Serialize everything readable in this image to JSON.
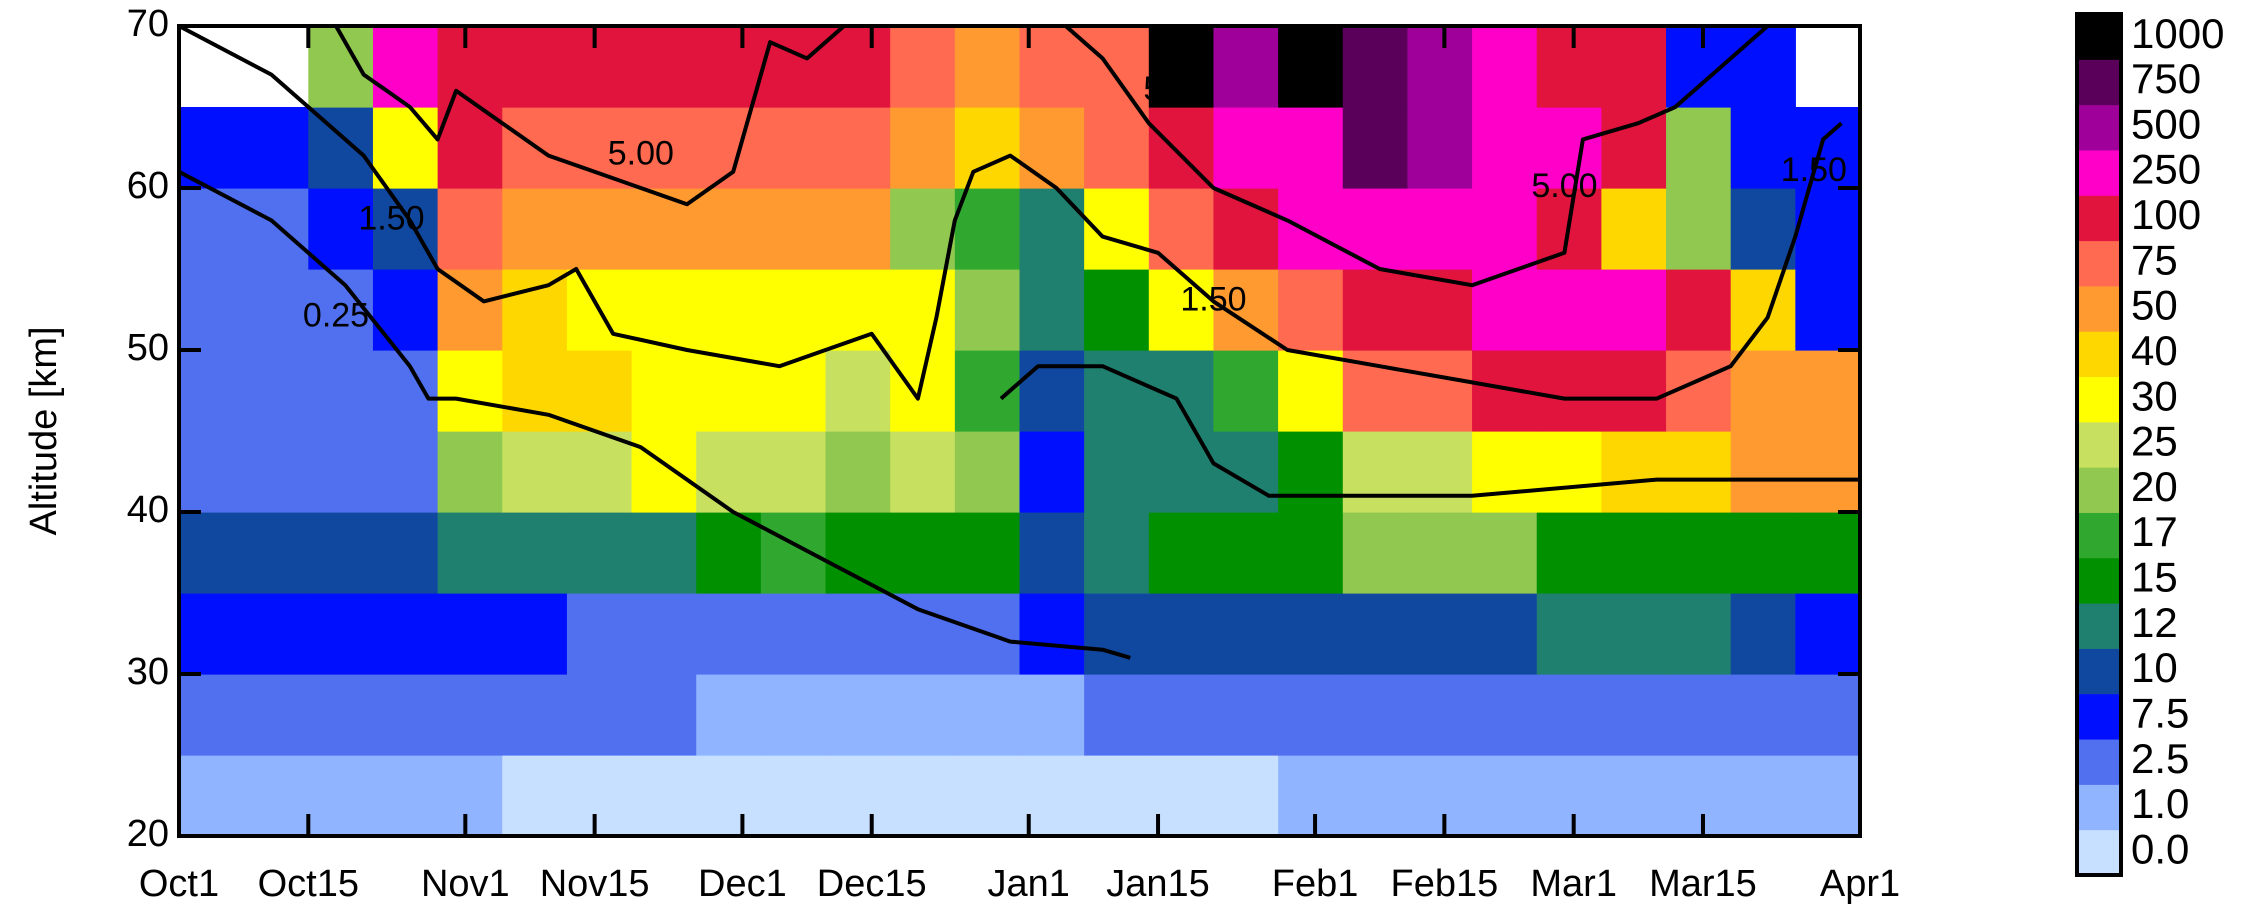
{
  "chart_data": {
    "type": "heatmap",
    "ylabel": "Altitude [km]",
    "xlim": [
      0,
      182
    ],
    "xticks": [
      {
        "value": 0,
        "label": "Oct1"
      },
      {
        "value": 14,
        "label": "Oct15"
      },
      {
        "value": 31,
        "label": "Nov1"
      },
      {
        "value": 45,
        "label": "Nov15"
      },
      {
        "value": 61,
        "label": "Dec1"
      },
      {
        "value": 75,
        "label": "Dec15"
      },
      {
        "value": 92,
        "label": "Jan1"
      },
      {
        "value": 106,
        "label": "Jan15"
      },
      {
        "value": 123,
        "label": "Feb1"
      },
      {
        "value": 137,
        "label": "Feb15"
      },
      {
        "value": 151,
        "label": "Mar1"
      },
      {
        "value": 165,
        "label": "Mar15"
      },
      {
        "value": 182,
        "label": "Apr1"
      }
    ],
    "ylim": [
      20,
      70
    ],
    "yticks": [
      20,
      30,
      40,
      50,
      60,
      70
    ],
    "x_bins": [
      0,
      7,
      14,
      21,
      28,
      35,
      42,
      49,
      56,
      63,
      70,
      77,
      84,
      91,
      98,
      105,
      112,
      119,
      126,
      133,
      140,
      147,
      154,
      161,
      168,
      175,
      182
    ],
    "y_bins": [
      20,
      25,
      30,
      35,
      40,
      45,
      50,
      55,
      60,
      65,
      70
    ],
    "values": [
      [
        1,
        1,
        1,
        1,
        1,
        0,
        0,
        0,
        0,
        0,
        0,
        0,
        0,
        0,
        0,
        0,
        0,
        1,
        1,
        1,
        1,
        1,
        1,
        1,
        1,
        1
      ],
      [
        2.5,
        2.5,
        2.5,
        2.5,
        2.5,
        2.5,
        2.5,
        2.5,
        1,
        1,
        1,
        1,
        1,
        1,
        2.5,
        2.5,
        2.5,
        2.5,
        2.5,
        2.5,
        2.5,
        2.5,
        2.5,
        2.5,
        2.5,
        2.5
      ],
      [
        7.5,
        7.5,
        7.5,
        7.5,
        7.5,
        7.5,
        2.5,
        2.5,
        2.5,
        2.5,
        2.5,
        2.5,
        2.5,
        7.5,
        10,
        10,
        10,
        10,
        10,
        10,
        10,
        12,
        12,
        12,
        10,
        7.5
      ],
      [
        10,
        10,
        10,
        10,
        12,
        12,
        12,
        12,
        15,
        17,
        15,
        15,
        15,
        10,
        12,
        15,
        15,
        15,
        20,
        20,
        20,
        15,
        15,
        15,
        15,
        15
      ],
      [
        2.5,
        2.5,
        2.5,
        2.5,
        20,
        25,
        25,
        30,
        25,
        25,
        20,
        25,
        20,
        7.5,
        12,
        12,
        12,
        15,
        25,
        25,
        30,
        30,
        40,
        40,
        50,
        50
      ],
      [
        2.5,
        2.5,
        2.5,
        2.5,
        30,
        40,
        40,
        30,
        30,
        30,
        25,
        30,
        17,
        10,
        12,
        12,
        17,
        30,
        75,
        75,
        100,
        100,
        100,
        75,
        50,
        50
      ],
      [
        2.5,
        2.5,
        2.5,
        7.5,
        50,
        40,
        30,
        30,
        30,
        30,
        30,
        30,
        20,
        12,
        15,
        30,
        50,
        75,
        100,
        100,
        250,
        250,
        250,
        100,
        40,
        7.5
      ],
      [
        2.5,
        2.5,
        7.5,
        10,
        75,
        50,
        50,
        50,
        50,
        50,
        50,
        20,
        17,
        12,
        30,
        75,
        100,
        250,
        250,
        250,
        250,
        100,
        40,
        20,
        10,
        7.5
      ],
      [
        7.5,
        7.5,
        10,
        30,
        100,
        75,
        75,
        75,
        75,
        75,
        75,
        50,
        40,
        50,
        75,
        100,
        250,
        250,
        750,
        500,
        250,
        250,
        100,
        20,
        7.5,
        7.5
      ],
      [
        null,
        null,
        20,
        250,
        100,
        100,
        100,
        100,
        100,
        100,
        100,
        75,
        50,
        75,
        75,
        1000,
        500,
        1000,
        750,
        500,
        250,
        100,
        100,
        7.5,
        7.5,
        null
      ]
    ],
    "levels": [
      {
        "value": 0,
        "label": "0.0"
      },
      {
        "value": 1,
        "label": "1.0"
      },
      2.5,
      7.5,
      10,
      12,
      15,
      17,
      20,
      25,
      30,
      40,
      50,
      75,
      100,
      250,
      500,
      750,
      1000
    ],
    "colors": [
      "#c8e0ff",
      "#90b4ff",
      "#5070f0",
      "#0010ff",
      "#1048a0",
      "#208070",
      "#009000",
      "#30a830",
      "#90c850",
      "#c8e060",
      "#ffff00",
      "#ffd700",
      "#ff9a30",
      "#ff6a50",
      "#e0143c",
      "#ff00c8",
      "#a0009a",
      "#5a005a",
      "#000000"
    ],
    "contours": [
      {
        "label": "0.25",
        "label_at": [
          [
            17,
            52
          ]
        ],
        "x": [
          0,
          10,
          18,
          25,
          27,
          30,
          40,
          50,
          60,
          70,
          80,
          90,
          100,
          103,
          null,
          89,
          93,
          100,
          108,
          112,
          118,
          124,
          140,
          160,
          182
        ],
        "y": [
          61,
          58,
          54,
          49,
          47,
          47,
          46,
          44,
          40,
          37,
          34,
          32,
          31.5,
          31,
          null,
          47,
          49,
          49,
          47,
          43,
          41,
          41,
          41,
          42,
          42
        ]
      },
      {
        "label": "1.50",
        "label_at": [
          [
            23,
            58
          ],
          [
            112,
            53
          ],
          [
            177,
            61
          ]
        ],
        "x": [
          0,
          10,
          20,
          25,
          28,
          33,
          40,
          43,
          47,
          55,
          65,
          70,
          75,
          80,
          82,
          84,
          86,
          90,
          95,
          100,
          106,
          112,
          120,
          130,
          140,
          150,
          160,
          168,
          172,
          175,
          178,
          180
        ],
        "y": [
          70,
          67,
          62,
          58,
          55,
          53,
          54,
          55,
          51,
          50,
          49,
          50,
          51,
          47,
          52,
          58,
          61,
          62,
          60,
          57,
          56,
          53,
          50,
          49,
          48,
          47,
          47,
          49,
          52,
          57,
          63,
          64
        ]
      },
      {
        "label": "5.00",
        "label_at": [
          [
            50,
            62
          ],
          [
            108,
            66
          ],
          [
            150,
            60
          ]
        ],
        "x": [
          17,
          20,
          25,
          28,
          30,
          35,
          40,
          45,
          50,
          55,
          60,
          64,
          68,
          72,
          null,
          90,
          96,
          100,
          105,
          112,
          120,
          130,
          140,
          145,
          150,
          152,
          158,
          162,
          168,
          172
        ],
        "y": [
          70,
          67,
          65,
          63,
          66,
          64,
          62,
          61,
          60,
          59,
          61,
          69,
          68,
          70,
          null,
          70,
          70,
          68,
          64,
          60,
          58,
          55,
          54,
          55,
          56,
          63,
          64,
          65,
          68,
          70
        ]
      }
    ]
  }
}
